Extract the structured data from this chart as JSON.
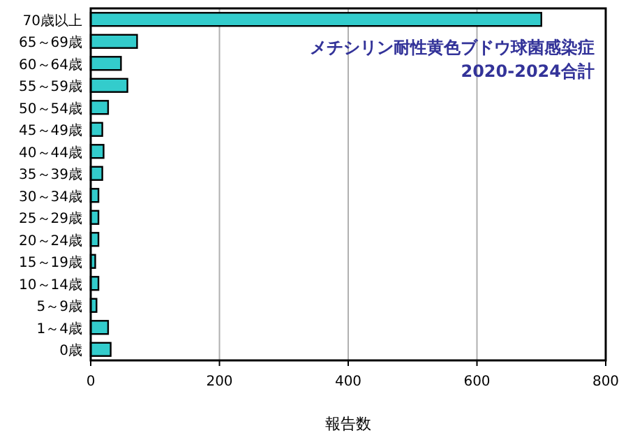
{
  "chart_data": {
    "type": "bar",
    "orientation": "horizontal",
    "title": "メチシリン耐性黄色ブドウ球菌感染症\n2020-2024合計",
    "xlabel": "報告数",
    "categories": [
      "70歳以上",
      "65～69歳",
      "60～64歳",
      "55～59歳",
      "50～54歳",
      "45～49歳",
      "40～44歳",
      "35～39歳",
      "30～34歳",
      "25～29歳",
      "20～24歳",
      "15～19歳",
      "10～14歳",
      "5～9歳",
      "1～4歳",
      "0歳"
    ],
    "values": [
      700,
      72,
      47,
      57,
      27,
      18,
      20,
      18,
      12,
      12,
      12,
      7,
      12,
      9,
      27,
      31
    ],
    "color": "#33cccc",
    "xlim": [
      0,
      800
    ],
    "xticks": [
      0,
      200,
      400,
      600,
      800
    ],
    "grid": "x"
  }
}
